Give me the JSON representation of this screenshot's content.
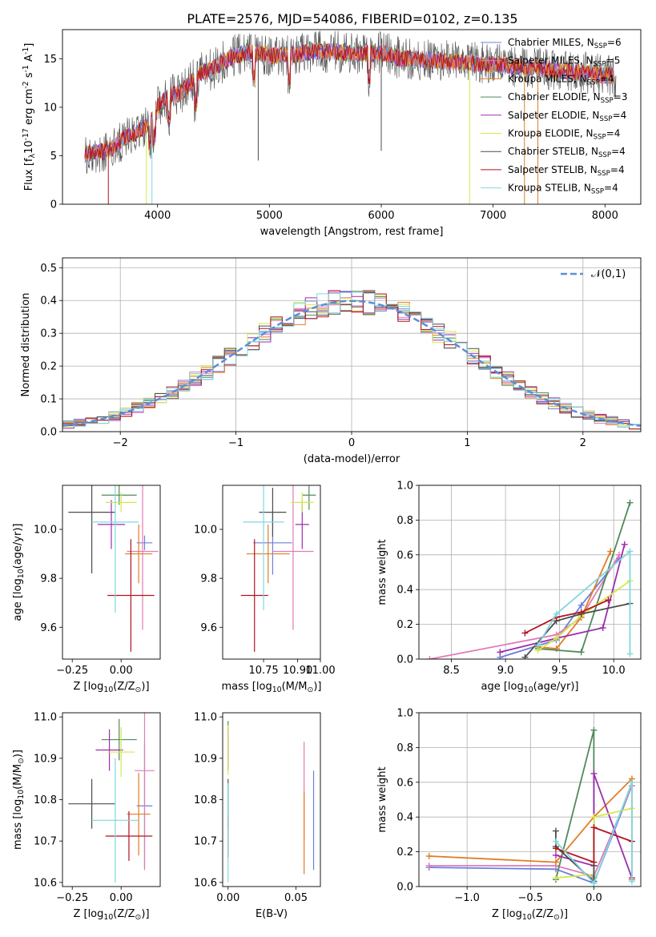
{
  "figure_title": "PLATE=2576, MJD=54086, FIBERID=0102, z=0.135",
  "models": [
    {
      "name": "Chabrier MILES, N$_{SSP}$=6",
      "color": "#6a80dd"
    },
    {
      "name": "Salpeter MILES, N$_{SSP}$=5",
      "color": "#e07bb8"
    },
    {
      "name": "Kroupa MILES, N$_{SSP}$=4",
      "color": "#e07d24"
    },
    {
      "name": "Chabrier ELODIE, N$_{SSP}$=3",
      "color": "#4f8a5a"
    },
    {
      "name": "Salpeter ELODIE, N$_{SSP}$=4",
      "color": "#9b2db0"
    },
    {
      "name": "Kroupa ELODIE, N$_{SSP}$=4",
      "color": "#d6e84a"
    },
    {
      "name": "Chabrier STELIB, N$_{SSP}$=4",
      "color": "#4d4d4d"
    },
    {
      "name": "Salpeter STELIB, N$_{SSP}$=4",
      "color": "#b0151f"
    },
    {
      "name": "Kroupa STELIB, N$_{SSP}$=4",
      "color": "#7fd8e0"
    }
  ],
  "chart_data": [
    {
      "id": "spectrum",
      "type": "line",
      "title": "",
      "xlabel": "wavelength [Angstrom, rest frame]",
      "ylabel": "Flux [f$_\\lambda$10$^{-17}$ erg cm$^{-2}$ s$^{-1}$ A$^{-1}$]",
      "xlim": [
        3150,
        8320
      ],
      "ylim": [
        0,
        18
      ],
      "xticks": [
        4000,
        5000,
        6000,
        7000,
        8000
      ],
      "yticks": [
        0,
        5,
        10,
        15
      ],
      "legend": "upper right",
      "continuum_x": [
        3350,
        3500,
        3600,
        3700,
        3800,
        3900,
        4000,
        4100,
        4200,
        4300,
        4400,
        4500,
        4600,
        4700,
        4800,
        4900,
        5000,
        5200,
        5400,
        5600,
        5800,
        6000,
        6200,
        6400,
        6600,
        6800,
        7000,
        7200,
        7400,
        7600,
        7800,
        8000,
        8100
      ],
      "continuum_y": [
        5.2,
        5.4,
        5.8,
        6.8,
        7.3,
        8.0,
        10.0,
        11.2,
        11.4,
        12.6,
        13.6,
        14.0,
        14.8,
        15.4,
        15.5,
        15.6,
        15.3,
        15.4,
        15.8,
        15.7,
        15.5,
        15.6,
        15.0,
        14.9,
        14.7,
        14.6,
        14.4,
        14.2,
        14.1,
        13.7,
        13.6,
        13.3,
        13.2
      ],
      "grid": false
    },
    {
      "id": "residuals",
      "type": "histogram",
      "xlabel": "(data-model)/error",
      "ylabel": "Normed distribution",
      "xlim": [
        -2.5,
        2.5
      ],
      "ylim": [
        0,
        0.53
      ],
      "xticks": [
        -2,
        -1,
        0,
        1,
        2
      ],
      "yticks": [
        0.0,
        0.1,
        0.2,
        0.3,
        0.4,
        0.5
      ],
      "reference_curve": "$\\mathcal{N}(0,1)$",
      "bin_width": 0.1,
      "grid": true
    },
    {
      "id": "age_vs_Z",
      "type": "scatter",
      "xlabel": "Z [log$_{10}$(Z/Z$_\\odot$)]",
      "ylabel": "age  [log$_{10}$(age/yr)]",
      "xlim": [
        -0.3,
        0.2
      ],
      "ylim": [
        9.47,
        10.18
      ],
      "xticks": [
        -0.25,
        0.0,
        0.25
      ],
      "yticks": [
        9.6,
        9.8,
        10.0
      ],
      "points": [
        {
          "model": 0,
          "x": 0.12,
          "y": 9.945,
          "xerr": 0.04,
          "yerr": 0.03
        },
        {
          "model": 1,
          "x": 0.11,
          "y": 9.91,
          "xerr": 0.08,
          "yerr": 0.32
        },
        {
          "model": 2,
          "x": 0.09,
          "y": 9.9,
          "xerr": 0.07,
          "yerr": 0.12
        },
        {
          "model": 3,
          "x": -0.01,
          "y": 10.14,
          "xerr": 0.09,
          "yerr": 0.04
        },
        {
          "model": 4,
          "x": -0.05,
          "y": 10.02,
          "xerr": 0.07,
          "yerr": 0.1
        },
        {
          "model": 5,
          "x": 0.0,
          "y": 10.11,
          "xerr": 0.08,
          "yerr": 0.04
        },
        {
          "model": 6,
          "x": -0.15,
          "y": 10.07,
          "xerr": 0.12,
          "yerr": 0.25
        },
        {
          "model": 7,
          "x": 0.05,
          "y": 9.73,
          "xerr": 0.12,
          "yerr": 0.23
        },
        {
          "model": 8,
          "x": -0.03,
          "y": 10.03,
          "xerr": 0.12,
          "yerr": 0.37
        }
      ]
    },
    {
      "id": "age_vs_mass",
      "type": "scatter",
      "xlabel": "mass [log$_{10}$(M/M$_\\odot$)]",
      "ylabel": "",
      "xlim": [
        10.57,
        11.0
      ],
      "ylim": [
        9.47,
        10.18
      ],
      "xticks": [
        10.75,
        10.9,
        11.0
      ],
      "xticklabels": [
        "10.75",
        "10.90",
        "11.00"
      ],
      "yticks": [
        9.6,
        9.8,
        10.0
      ],
      "points": [
        {
          "model": 0,
          "x": 10.79,
          "y": 9.945,
          "xerr": 0.085,
          "yerr": 0.13
        },
        {
          "model": 1,
          "x": 10.88,
          "y": 9.91,
          "xerr": 0.09,
          "yerr": 0.32
        },
        {
          "model": 2,
          "x": 10.77,
          "y": 9.9,
          "xerr": 0.095,
          "yerr": 0.12
        },
        {
          "model": 3,
          "x": 10.95,
          "y": 10.14,
          "xerr": 0.03,
          "yerr": 0.06
        },
        {
          "model": 4,
          "x": 10.92,
          "y": 10.02,
          "xerr": 0.03,
          "yerr": 0.1
        },
        {
          "model": 5,
          "x": 10.92,
          "y": 10.11,
          "xerr": 0.05,
          "yerr": 0.04
        },
        {
          "model": 6,
          "x": 10.79,
          "y": 10.07,
          "xerr": 0.06,
          "yerr": 0.1
        },
        {
          "model": 7,
          "x": 10.71,
          "y": 9.73,
          "xerr": 0.06,
          "yerr": 0.23
        },
        {
          "model": 8,
          "x": 10.75,
          "y": 10.03,
          "xerr": 0.09,
          "yerr": 0.36
        }
      ]
    },
    {
      "id": "weight_vs_age",
      "type": "line",
      "xlabel": "age  [log$_{10}$(age/yr)]",
      "ylabel": "mass weight",
      "xlim": [
        8.2,
        10.25
      ],
      "ylim": [
        0,
        1.0
      ],
      "xticks": [
        8.5,
        9.0,
        9.5,
        10.0
      ],
      "yticks": [
        0.0,
        0.2,
        0.4,
        0.6,
        0.8,
        1.0
      ],
      "series": [
        {
          "model": 0,
          "x": [
            8.95,
            9.47,
            9.7,
            10.05
          ],
          "y": [
            0.01,
            0.11,
            0.31,
            0.58
          ]
        },
        {
          "model": 1,
          "x": [
            8.3,
            9.47,
            9.7,
            10.05
          ],
          "y": [
            0.0,
            0.14,
            0.24,
            0.6
          ]
        },
        {
          "model": 2,
          "x": [
            9.3,
            9.47,
            9.7,
            9.97
          ],
          "y": [
            0.07,
            0.06,
            0.24,
            0.62
          ]
        },
        {
          "model": 3,
          "x": [
            9.3,
            9.7,
            10.15
          ],
          "y": [
            0.06,
            0.04,
            0.9
          ]
        },
        {
          "model": 4,
          "x": [
            8.95,
            9.47,
            9.9,
            10.1
          ],
          "y": [
            0.04,
            0.12,
            0.18,
            0.66
          ]
        },
        {
          "model": 5,
          "x": [
            9.3,
            9.47,
            9.7,
            10.15
          ],
          "y": [
            0.05,
            0.12,
            0.25,
            0.45
          ]
        },
        {
          "model": 6,
          "x": [
            9.18,
            9.47,
            9.7,
            10.15
          ],
          "y": [
            0.01,
            0.22,
            0.26,
            0.32
          ]
        },
        {
          "model": 7,
          "x": [
            9.18,
            9.47,
            9.7,
            9.95
          ],
          "y": [
            0.15,
            0.24,
            0.27,
            0.34
          ]
        },
        {
          "model": 8,
          "x": [
            9.3,
            9.47,
            10.15,
            10.15
          ],
          "y": [
            0.08,
            0.26,
            0.62,
            0.03
          ]
        }
      ],
      "grid": true
    },
    {
      "id": "mass_vs_Z",
      "type": "scatter",
      "xlabel": "Z [log$_{10}$(Z/Z$_\\odot$)]",
      "ylabel": "mass [log$_{10}$(M/M$_\\odot$)]",
      "xlim": [
        -0.3,
        0.2
      ],
      "ylim": [
        10.59,
        11.01
      ],
      "xticks": [
        -0.25,
        0.0,
        0.25
      ],
      "yticks": [
        10.6,
        10.7,
        10.8,
        10.9,
        11.0
      ],
      "points": [
        {
          "model": 0,
          "x": 0.12,
          "y": 10.785,
          "xerr": 0.04,
          "yerr": 0.15
        },
        {
          "model": 1,
          "x": 0.12,
          "y": 10.87,
          "xerr": 0.05,
          "yerr": 0.24
        },
        {
          "model": 2,
          "x": 0.09,
          "y": 10.765,
          "xerr": 0.06,
          "yerr": 0.1
        },
        {
          "model": 3,
          "x": -0.01,
          "y": 10.945,
          "xerr": 0.09,
          "yerr": 0.05
        },
        {
          "model": 4,
          "x": -0.06,
          "y": 10.92,
          "xerr": 0.07,
          "yerr": 0.05
        },
        {
          "model": 5,
          "x": 0.0,
          "y": 10.915,
          "xerr": 0.07,
          "yerr": 0.06
        },
        {
          "model": 6,
          "x": -0.15,
          "y": 10.79,
          "xerr": 0.12,
          "yerr": 0.06
        },
        {
          "model": 7,
          "x": 0.04,
          "y": 10.712,
          "xerr": 0.12,
          "yerr": 0.06
        },
        {
          "model": 8,
          "x": -0.03,
          "y": 10.75,
          "xerr": 0.12,
          "yerr": 0.15
        }
      ]
    },
    {
      "id": "mass_vs_ebv",
      "type": "scatter",
      "xlabel": "E(B-V)",
      "ylabel": "",
      "xlim": [
        -0.004,
        0.068
      ],
      "ylim": [
        10.59,
        11.01
      ],
      "xticks": [
        0.0,
        0.05
      ],
      "xticklabels": [
        "0.00",
        "0.05"
      ],
      "yticks": [
        10.6,
        10.7,
        10.8,
        10.9,
        11.0
      ],
      "points": [
        {
          "model": 0,
          "x": 0.063,
          "y": 10.75,
          "xerr": 0.0,
          "yerr": 0.12
        },
        {
          "model": 1,
          "x": 0.056,
          "y": 10.82,
          "xerr": 0.0,
          "yerr": 0.12
        },
        {
          "model": 2,
          "x": 0.056,
          "y": 10.72,
          "xerr": 0.0,
          "yerr": 0.1
        },
        {
          "model": 3,
          "x": 0.0,
          "y": 10.94,
          "xerr": 0.0,
          "yerr": 0.05
        },
        {
          "model": 4,
          "x": 0.0,
          "y": 10.92,
          "xerr": 0.0,
          "yerr": 0.05
        },
        {
          "model": 5,
          "x": 0.0,
          "y": 10.92,
          "xerr": 0.0,
          "yerr": 0.06
        },
        {
          "model": 6,
          "x": 0.0,
          "y": 10.79,
          "xerr": 0.0,
          "yerr": 0.06
        },
        {
          "model": 7,
          "x": 0.0,
          "y": 10.71,
          "xerr": 0.0,
          "yerr": 0.05
        },
        {
          "model": 8,
          "x": 0.0,
          "y": 10.72,
          "xerr": 0.0,
          "yerr": 0.12
        }
      ]
    },
    {
      "id": "weight_vs_Z",
      "type": "line",
      "xlabel": "Z [log$_{10}$(Z/Z$_\\odot$)]",
      "ylabel": "mass weight",
      "xlim": [
        -1.38,
        0.37
      ],
      "ylim": [
        0,
        1.0
      ],
      "xticks": [
        -1.0,
        -0.5,
        0.0
      ],
      "yticks": [
        0.0,
        0.2,
        0.4,
        0.6,
        0.8,
        1.0
      ],
      "series": [
        {
          "model": 0,
          "x": [
            -1.3,
            -0.3,
            0.0,
            0.3
          ],
          "y": [
            0.11,
            0.1,
            0.02,
            0.58
          ]
        },
        {
          "model": 1,
          "x": [
            -1.3,
            -0.3,
            0.0,
            0.3
          ],
          "y": [
            0.12,
            0.12,
            0.06,
            0.58
          ]
        },
        {
          "model": 2,
          "x": [
            -1.3,
            -0.3,
            0.0,
            0.3,
            0.3
          ],
          "y": [
            0.175,
            0.14,
            0.4,
            0.62,
            0.04
          ]
        },
        {
          "model": 3,
          "x": [
            -0.3,
            0.0,
            0.0
          ],
          "y": [
            0.04,
            0.9,
            0.05
          ]
        },
        {
          "model": 4,
          "x": [
            -0.3,
            0.0,
            0.0,
            0.3
          ],
          "y": [
            0.18,
            0.12,
            0.65,
            0.05
          ]
        },
        {
          "model": 5,
          "x": [
            -0.3,
            0.0,
            0.0,
            0.3
          ],
          "y": [
            0.05,
            0.07,
            0.4,
            0.45
          ]
        },
        {
          "model": 6,
          "x": [
            -0.3,
            -0.3,
            0.0,
            0.0
          ],
          "y": [
            0.32,
            0.23,
            0.03,
            0.12
          ]
        },
        {
          "model": 7,
          "x": [
            -0.3,
            0.0,
            0.0,
            0.3
          ],
          "y": [
            0.22,
            0.14,
            0.34,
            0.26
          ]
        },
        {
          "model": 8,
          "x": [
            -0.3,
            0.0,
            0.3,
            0.3
          ],
          "y": [
            0.26,
            0.02,
            0.6,
            0.03
          ]
        }
      ],
      "grid": true
    }
  ]
}
